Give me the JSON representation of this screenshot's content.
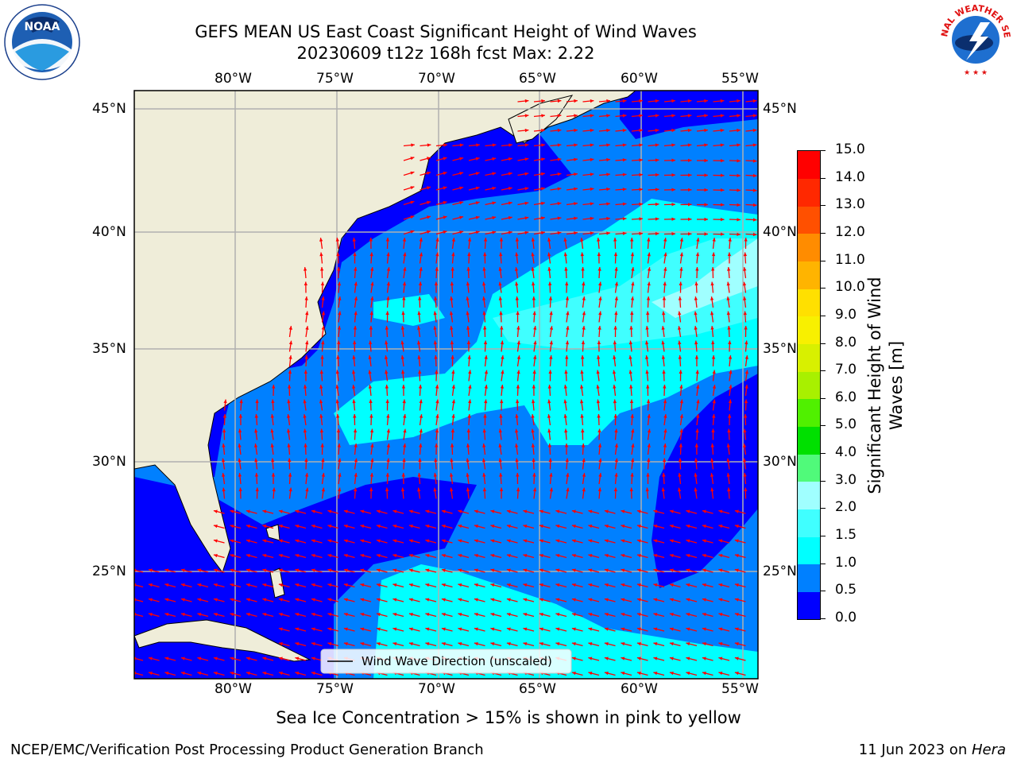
{
  "header": {
    "title_line1": "GEFS MEAN US East Coast Significant Height of Wind Waves",
    "title_line2": "20230609 t12z 168h fcst   Max: 2.22",
    "left_logo_text": "NOAA",
    "right_logo_text": "NATIONAL WEATHER SERVICE"
  },
  "map": {
    "lon_labels": [
      "80°W",
      "75°W",
      "70°W",
      "65°W",
      "60°W",
      "55°W"
    ],
    "lat_labels": [
      "45°N",
      "40°N",
      "35°N",
      "30°N",
      "25°N"
    ],
    "legend_text": "Wind Wave Direction (unscaled)",
    "colors": {
      "land": "#efedd9",
      "level_0": "#0000ff",
      "level_05": "#0080ff",
      "level_1": "#00ffff",
      "level_15": "#40ffff",
      "level_2": "#a0ffff",
      "arrow": "#ff0000",
      "grid": "#b0b0b0"
    }
  },
  "colorbar": {
    "title": "Significant Height of Wind Waves [m]",
    "ticks": [
      "0.0",
      "0.5",
      "1.0",
      "1.5",
      "2.0",
      "3.0",
      "4.0",
      "5.0",
      "6.0",
      "7.0",
      "8.0",
      "9.0",
      "10.0",
      "11.0",
      "12.0",
      "13.0",
      "14.0",
      "15.0"
    ],
    "colors": [
      "#0000ff",
      "#0080ff",
      "#00ffff",
      "#40ffff",
      "#a0ffff",
      "#50fa7a",
      "#00e000",
      "#50f000",
      "#a8f000",
      "#d8f000",
      "#f8f000",
      "#ffe000",
      "#ffb400",
      "#ff8c00",
      "#ff5000",
      "#ff2800",
      "#ff0000"
    ]
  },
  "footer": {
    "ice_note": "Sea Ice Concentration > 15% is shown in pink to yellow",
    "left": "NCEP/EMC/Verification Post Processing Product Generation Branch",
    "date": "11 Jun 2023 on ",
    "machine": "Hera"
  }
}
